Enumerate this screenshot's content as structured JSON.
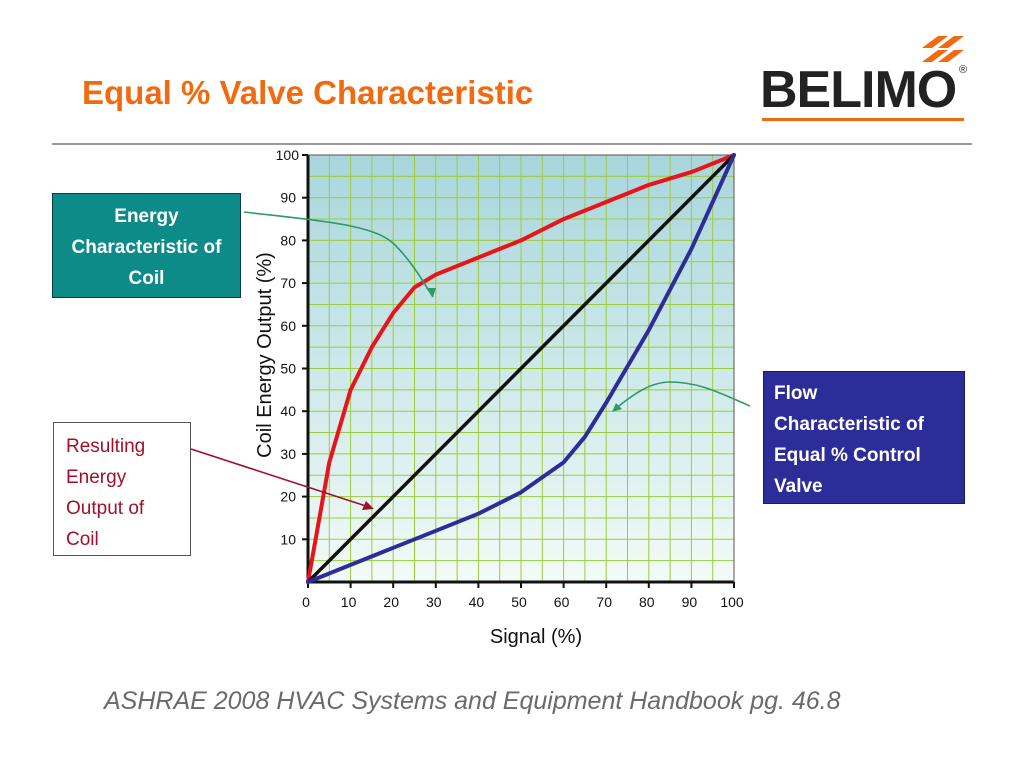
{
  "slide": {
    "title": "Equal % Valve Characteristic",
    "title_color": "#f26a10",
    "source": "ASHRAE 2008 HVAC Systems and Equipment Handbook pg. 46.8"
  },
  "logo": {
    "text": "BELIMO",
    "registered": "®",
    "accent_color": "#f26a10"
  },
  "callouts": {
    "energy": {
      "lines": [
        "Energy",
        "Characteristic of",
        "Coil"
      ],
      "bg": "#0d8b89"
    },
    "flow": {
      "lines": [
        "Flow",
        "Characteristic of",
        "Equal % Control",
        "Valve"
      ],
      "bg": "#2d2d9a"
    },
    "result": {
      "lines": [
        "Resulting",
        "Energy",
        "Output of",
        "Coil"
      ],
      "text_color": "#a0102a"
    }
  },
  "chart_data": {
    "type": "line",
    "xlabel": "Signal (%)",
    "ylabel": "Coil Energy Output (%)",
    "xlim": [
      0,
      100
    ],
    "ylim": [
      0,
      100
    ],
    "x_ticks": [
      0,
      10,
      20,
      30,
      40,
      50,
      60,
      70,
      80,
      90,
      100
    ],
    "y_ticks": [
      10,
      20,
      30,
      40,
      50,
      60,
      70,
      80,
      90,
      100
    ],
    "grid": true,
    "plot_bg_top": "#a8d6dc",
    "plot_bg_bottom": "#f2fbf7",
    "grid_color": "#9ccc3c",
    "series": [
      {
        "color": "#e8141c",
        "x": [
          0,
          5,
          10,
          15,
          20,
          25,
          30,
          40,
          50,
          60,
          70,
          80,
          90,
          100
        ],
        "y": [
          0,
          28,
          45,
          55,
          63,
          69,
          72,
          76,
          80,
          85,
          89,
          93,
          96,
          100
        ]
      },
      {
        "color": "#111111",
        "x": [
          0,
          100
        ],
        "y": [
          0,
          100
        ]
      },
      {
        "color": "#2d2d9a",
        "x": [
          0,
          10,
          20,
          30,
          40,
          50,
          60,
          65,
          70,
          80,
          90,
          100
        ],
        "y": [
          0,
          4,
          8,
          12,
          16,
          21,
          28,
          34,
          42,
          59,
          78,
          100
        ]
      }
    ]
  }
}
